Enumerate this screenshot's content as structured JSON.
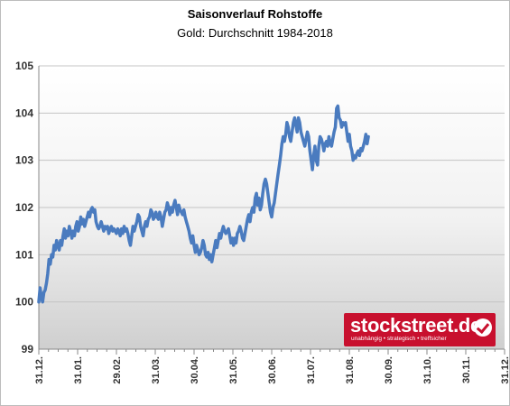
{
  "chart_data": {
    "type": "line",
    "title": "Saisonverlauf Rohstoffe",
    "subtitle": "Gold: Durchschnitt 1984-2018",
    "xlabel": "",
    "ylabel": "",
    "ylim": [
      99,
      105
    ],
    "yticks": [
      99,
      100,
      101,
      102,
      103,
      104,
      105
    ],
    "x_ticks": [
      "31.12.",
      "31.01.",
      "29.02.",
      "31.03.",
      "30.04.",
      "31.05.",
      "30.06.",
      "31.07.",
      "31.08.",
      "30.09.",
      "31.10.",
      "30.11.",
      "31.12."
    ],
    "x_range_days": [
      0,
      366
    ],
    "grid": true,
    "legend": "none",
    "series": [
      {
        "color": "#4a7bbf",
        "points": [
          [
            0,
            100.0
          ],
          [
            1,
            100.3
          ],
          [
            2,
            100.1
          ],
          [
            3,
            100.0
          ],
          [
            4,
            100.2
          ],
          [
            5,
            100.25
          ],
          [
            6,
            100.4
          ],
          [
            7,
            100.6
          ],
          [
            8,
            100.9
          ],
          [
            9,
            100.8
          ],
          [
            10,
            101.0
          ],
          [
            11,
            100.95
          ],
          [
            12,
            101.2
          ],
          [
            13,
            101.1
          ],
          [
            14,
            101.3
          ],
          [
            15,
            101.2
          ],
          [
            16,
            101.1
          ],
          [
            17,
            101.3
          ],
          [
            18,
            101.2
          ],
          [
            19,
            101.4
          ],
          [
            20,
            101.55
          ],
          [
            21,
            101.35
          ],
          [
            22,
            101.5
          ],
          [
            23,
            101.4
          ],
          [
            24,
            101.6
          ],
          [
            25,
            101.5
          ],
          [
            26,
            101.35
          ],
          [
            27,
            101.5
          ],
          [
            28,
            101.4
          ],
          [
            29,
            101.6
          ],
          [
            30,
            101.7
          ],
          [
            31,
            101.5
          ],
          [
            32,
            101.6
          ],
          [
            33,
            101.8
          ],
          [
            34,
            101.65
          ],
          [
            35,
            101.75
          ],
          [
            36,
            101.6
          ],
          [
            37,
            101.7
          ],
          [
            38,
            101.8
          ],
          [
            39,
            101.9
          ],
          [
            40,
            101.8
          ],
          [
            41,
            101.95
          ],
          [
            42,
            102.0
          ],
          [
            43,
            101.9
          ],
          [
            44,
            101.95
          ],
          [
            45,
            101.7
          ],
          [
            46,
            101.6
          ],
          [
            47,
            101.55
          ],
          [
            48,
            101.6
          ],
          [
            49,
            101.7
          ],
          [
            50,
            101.6
          ],
          [
            51,
            101.5
          ],
          [
            52,
            101.6
          ],
          [
            53,
            101.55
          ],
          [
            54,
            101.6
          ],
          [
            55,
            101.45
          ],
          [
            56,
            101.55
          ],
          [
            57,
            101.6
          ],
          [
            58,
            101.5
          ],
          [
            59,
            101.55
          ],
          [
            60,
            101.5
          ],
          [
            61,
            101.45
          ],
          [
            62,
            101.55
          ],
          [
            63,
            101.5
          ],
          [
            64,
            101.4
          ],
          [
            65,
            101.55
          ],
          [
            66,
            101.45
          ],
          [
            67,
            101.6
          ],
          [
            68,
            101.5
          ],
          [
            69,
            101.55
          ],
          [
            70,
            101.45
          ],
          [
            71,
            101.3
          ],
          [
            72,
            101.2
          ],
          [
            73,
            101.4
          ],
          [
            74,
            101.6
          ],
          [
            75,
            101.5
          ],
          [
            76,
            101.6
          ],
          [
            77,
            101.7
          ],
          [
            78,
            101.85
          ],
          [
            79,
            101.8
          ],
          [
            80,
            101.6
          ],
          [
            81,
            101.5
          ],
          [
            82,
            101.4
          ],
          [
            83,
            101.6
          ],
          [
            84,
            101.7
          ],
          [
            85,
            101.6
          ],
          [
            86,
            101.75
          ],
          [
            87,
            101.8
          ],
          [
            88,
            101.95
          ],
          [
            89,
            101.9
          ],
          [
            90,
            101.75
          ],
          [
            91,
            101.8
          ],
          [
            92,
            101.9
          ],
          [
            93,
            101.8
          ],
          [
            94,
            101.75
          ],
          [
            95,
            101.9
          ],
          [
            96,
            101.8
          ],
          [
            97,
            101.6
          ],
          [
            98,
            101.75
          ],
          [
            99,
            101.9
          ],
          [
            100,
            101.95
          ],
          [
            101,
            102.1
          ],
          [
            102,
            102.0
          ],
          [
            103,
            101.85
          ],
          [
            104,
            102.0
          ],
          [
            105,
            101.9
          ],
          [
            106,
            102.05
          ],
          [
            107,
            102.15
          ],
          [
            108,
            102.0
          ],
          [
            109,
            101.85
          ],
          [
            110,
            102.05
          ],
          [
            111,
            101.95
          ],
          [
            112,
            101.9
          ],
          [
            113,
            101.85
          ],
          [
            114,
            101.95
          ],
          [
            115,
            101.8
          ],
          [
            116,
            101.7
          ],
          [
            117,
            101.6
          ],
          [
            118,
            101.5
          ],
          [
            119,
            101.35
          ],
          [
            120,
            101.25
          ],
          [
            121,
            101.4
          ],
          [
            122,
            101.2
          ],
          [
            123,
            101.05
          ],
          [
            124,
            101.2
          ],
          [
            125,
            101.1
          ],
          [
            126,
            101.0
          ],
          [
            127,
            101.05
          ],
          [
            128,
            101.15
          ],
          [
            129,
            101.3
          ],
          [
            130,
            101.2
          ],
          [
            131,
            101.0
          ],
          [
            132,
            100.95
          ],
          [
            133,
            101.05
          ],
          [
            134,
            100.9
          ],
          [
            135,
            101.0
          ],
          [
            136,
            100.85
          ],
          [
            137,
            101.0
          ],
          [
            138,
            101.15
          ],
          [
            139,
            101.3
          ],
          [
            140,
            101.15
          ],
          [
            141,
            101.3
          ],
          [
            142,
            101.45
          ],
          [
            143,
            101.35
          ],
          [
            144,
            101.5
          ],
          [
            145,
            101.6
          ],
          [
            146,
            101.5
          ],
          [
            147,
            101.45
          ],
          [
            148,
            101.5
          ],
          [
            149,
            101.55
          ],
          [
            150,
            101.4
          ],
          [
            151,
            101.25
          ],
          [
            152,
            101.35
          ],
          [
            153,
            101.2
          ],
          [
            154,
            101.35
          ],
          [
            155,
            101.25
          ],
          [
            156,
            101.45
          ],
          [
            157,
            101.5
          ],
          [
            158,
            101.6
          ],
          [
            159,
            101.5
          ],
          [
            160,
            101.35
          ],
          [
            161,
            101.3
          ],
          [
            162,
            101.45
          ],
          [
            163,
            101.6
          ],
          [
            164,
            101.75
          ],
          [
            165,
            101.85
          ],
          [
            166,
            101.7
          ],
          [
            167,
            101.9
          ],
          [
            168,
            102.0
          ],
          [
            169,
            101.9
          ],
          [
            170,
            102.2
          ],
          [
            171,
            102.3
          ],
          [
            172,
            102.05
          ],
          [
            173,
            102.2
          ],
          [
            174,
            101.95
          ],
          [
            175,
            102.05
          ],
          [
            176,
            102.3
          ],
          [
            177,
            102.5
          ],
          [
            178,
            102.6
          ],
          [
            179,
            102.5
          ],
          [
            180,
            102.3
          ],
          [
            181,
            102.1
          ],
          [
            182,
            101.9
          ],
          [
            183,
            101.8
          ],
          [
            184,
            102.0
          ],
          [
            185,
            102.1
          ],
          [
            186,
            102.3
          ],
          [
            187,
            102.5
          ],
          [
            188,
            102.7
          ],
          [
            189,
            102.9
          ],
          [
            190,
            103.1
          ],
          [
            191,
            103.35
          ],
          [
            192,
            103.5
          ],
          [
            193,
            103.4
          ],
          [
            194,
            103.55
          ],
          [
            195,
            103.8
          ],
          [
            196,
            103.7
          ],
          [
            197,
            103.5
          ],
          [
            198,
            103.4
          ],
          [
            199,
            103.6
          ],
          [
            200,
            103.8
          ],
          [
            201,
            103.9
          ],
          [
            202,
            103.75
          ],
          [
            203,
            103.6
          ],
          [
            204,
            103.9
          ],
          [
            205,
            103.8
          ],
          [
            206,
            103.6
          ],
          [
            207,
            103.5
          ],
          [
            208,
            103.4
          ],
          [
            209,
            103.3
          ],
          [
            210,
            103.45
          ],
          [
            211,
            103.6
          ],
          [
            212,
            103.5
          ],
          [
            213,
            103.2
          ],
          [
            214,
            103.0
          ],
          [
            215,
            102.8
          ],
          [
            216,
            103.1
          ],
          [
            217,
            103.3
          ],
          [
            218,
            103.0
          ],
          [
            219,
            102.9
          ],
          [
            220,
            103.3
          ],
          [
            221,
            103.5
          ],
          [
            222,
            103.45
          ],
          [
            223,
            103.35
          ],
          [
            224,
            103.2
          ],
          [
            225,
            103.35
          ],
          [
            226,
            103.4
          ],
          [
            227,
            103.3
          ],
          [
            228,
            103.5
          ],
          [
            229,
            103.35
          ],
          [
            230,
            103.3
          ],
          [
            231,
            103.45
          ],
          [
            232,
            103.6
          ],
          [
            233,
            103.7
          ],
          [
            234,
            104.1
          ],
          [
            235,
            104.15
          ],
          [
            236,
            103.9
          ],
          [
            237,
            103.85
          ],
          [
            238,
            103.7
          ],
          [
            239,
            103.8
          ],
          [
            240,
            103.75
          ],
          [
            241,
            103.8
          ],
          [
            242,
            103.6
          ],
          [
            243,
            103.4
          ],
          [
            244,
            103.55
          ],
          [
            245,
            103.3
          ],
          [
            246,
            103.2
          ],
          [
            247,
            103.0
          ],
          [
            248,
            103.1
          ],
          [
            249,
            103.05
          ],
          [
            250,
            103.15
          ],
          [
            251,
            103.2
          ],
          [
            252,
            103.1
          ],
          [
            253,
            103.25
          ],
          [
            254,
            103.2
          ],
          [
            255,
            103.3
          ],
          [
            256,
            103.4
          ],
          [
            257,
            103.55
          ],
          [
            258,
            103.35
          ],
          [
            259,
            103.5
          ]
        ]
      }
    ]
  },
  "brand": {
    "name": "stockstreet.de",
    "tagline": "unabhängig • strategisch • treffsicher"
  }
}
